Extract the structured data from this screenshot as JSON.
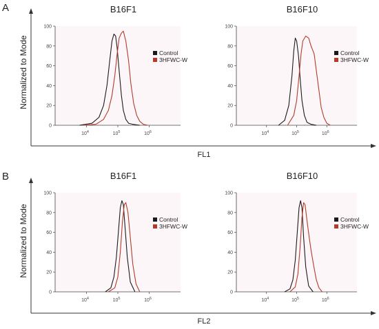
{
  "panels": [
    {
      "letter": "A",
      "ylabel": "Normalized to Mode",
      "xlabel": "FL1",
      "charts": [
        {
          "type": "line",
          "title": "B16F1",
          "x_scale": "log",
          "xlim": [
            1000,
            10000000
          ],
          "ylim": [
            0,
            100
          ],
          "y_ticks": [
            "0",
            "20",
            "40",
            "60",
            "80",
            "100"
          ],
          "x_ticks": [
            {
              "base": "10",
              "exp": "4"
            },
            {
              "base": "10",
              "exp": "5"
            },
            {
              "base": "10",
              "exp": "6"
            }
          ],
          "series": [
            {
              "name": "Control",
              "color": "#1a1a1a",
              "x": [
                6000,
                15000,
                25000,
                35000,
                45000,
                55000,
                65000,
                75000,
                85000,
                95000,
                110000,
                130000,
                150000,
                180000,
                220000,
                300000,
                500000
              ],
              "y": [
                0,
                2,
                8,
                20,
                40,
                65,
                85,
                92,
                90,
                78,
                55,
                30,
                15,
                6,
                2,
                1,
                0
              ]
            },
            {
              "name": "3HFWC-W",
              "color": "#b33a2a",
              "x": [
                8000,
                20000,
                35000,
                50000,
                65000,
                80000,
                95000,
                110000,
                130000,
                150000,
                180000,
                220000,
                260000,
                320000,
                400000,
                500000,
                650000,
                900000
              ],
              "y": [
                0,
                1,
                6,
                15,
                30,
                50,
                72,
                88,
                93,
                95,
                85,
                65,
                42,
                22,
                10,
                4,
                1,
                0
              ]
            }
          ]
        },
        {
          "type": "line",
          "title": "B16F10",
          "x_scale": "log",
          "xlim": [
            1000,
            10000000
          ],
          "ylim": [
            0,
            100
          ],
          "y_ticks": [
            "0",
            "20",
            "40",
            "60",
            "80",
            "100"
          ],
          "x_ticks": [
            {
              "base": "10",
              "exp": "4"
            },
            {
              "base": "10",
              "exp": "5"
            },
            {
              "base": "10",
              "exp": "6"
            }
          ],
          "series": [
            {
              "name": "Control",
              "color": "#1a1a1a",
              "x": [
                25000,
                40000,
                55000,
                70000,
                80000,
                90000,
                100000,
                115000,
                130000,
                150000,
                180000,
                220000,
                300000,
                450000
              ],
              "y": [
                0,
                5,
                20,
                50,
                75,
                88,
                85,
                70,
                48,
                25,
                10,
                3,
                1,
                0
              ]
            },
            {
              "name": "3HFWC-W",
              "color": "#b33a2a",
              "x": [
                50000,
                80000,
                100000,
                120000,
                140000,
                160000,
                200000,
                250000,
                300000,
                380000,
                450000,
                550000,
                650000,
                800000,
                1000000,
                1300000
              ],
              "y": [
                0,
                10,
                25,
                50,
                72,
                85,
                90,
                88,
                80,
                72,
                55,
                35,
                18,
                8,
                2,
                0
              ]
            }
          ]
        }
      ]
    },
    {
      "letter": "B",
      "ylabel": "Normalized to Mode",
      "xlabel": "FL2",
      "charts": [
        {
          "type": "line",
          "title": "B16F1",
          "x_scale": "log",
          "xlim": [
            1000,
            10000000
          ],
          "ylim": [
            0,
            100
          ],
          "y_ticks": [
            "0",
            "20",
            "40",
            "60",
            "80",
            "100"
          ],
          "x_ticks": [
            {
              "base": "10",
              "exp": "4"
            },
            {
              "base": "10",
              "exp": "5"
            },
            {
              "base": "10",
              "exp": "6"
            }
          ],
          "series": [
            {
              "name": "Control",
              "color": "#1a1a1a",
              "x": [
                40000,
                60000,
                75000,
                90000,
                105000,
                120000,
                135000,
                150000,
                170000,
                200000,
                250000,
                350000
              ],
              "y": [
                0,
                4,
                15,
                35,
                62,
                85,
                92,
                88,
                65,
                35,
                10,
                0
              ]
            },
            {
              "name": "3HFWC-W",
              "color": "#b33a2a",
              "x": [
                50000,
                80000,
                100000,
                120000,
                140000,
                160000,
                180000,
                210000,
                250000,
                300000,
                380000,
                500000
              ],
              "y": [
                0,
                4,
                15,
                40,
                70,
                88,
                90,
                80,
                55,
                28,
                8,
                0
              ]
            }
          ]
        },
        {
          "type": "line",
          "title": "B16F10",
          "x_scale": "log",
          "xlim": [
            1000,
            10000000
          ],
          "ylim": [
            0,
            100
          ],
          "y_ticks": [
            "0",
            "20",
            "40",
            "60",
            "80",
            "100"
          ],
          "x_ticks": [
            {
              "base": "10",
              "exp": "4"
            },
            {
              "base": "10",
              "exp": "5"
            },
            {
              "base": "10",
              "exp": "6"
            }
          ],
          "series": [
            {
              "name": "Control",
              "color": "#1a1a1a",
              "x": [
                40000,
                60000,
                75000,
                90000,
                105000,
                120000,
                135000,
                150000,
                170000,
                200000,
                250000,
                350000
              ],
              "y": [
                0,
                3,
                12,
                32,
                60,
                85,
                92,
                85,
                55,
                25,
                6,
                0
              ]
            },
            {
              "name": "3HFWC-W",
              "color": "#b33a2a",
              "x": [
                60000,
                90000,
                110000,
                130000,
                150000,
                170000,
                190000,
                220000,
                260000,
                300000,
                360000,
                450000,
                550000,
                700000
              ],
              "y": [
                0,
                5,
                18,
                45,
                75,
                90,
                88,
                72,
                55,
                42,
                28,
                12,
                4,
                0
              ]
            }
          ]
        }
      ]
    }
  ]
}
